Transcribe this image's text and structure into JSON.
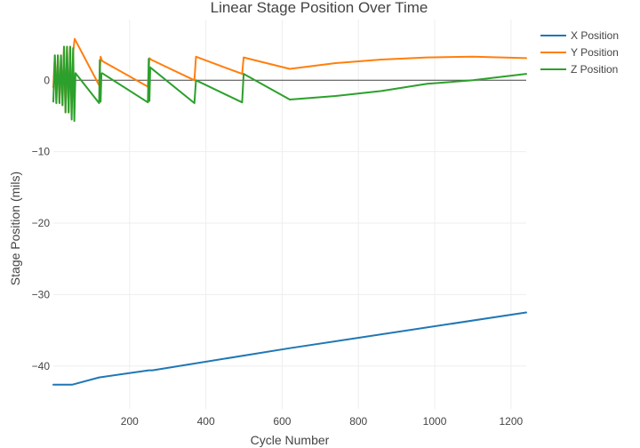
{
  "chart_data": {
    "type": "line",
    "title": "Linear Stage Position Over Time",
    "xlabel": "Cycle Number",
    "ylabel": "Stage Position (mils)",
    "xlim": [
      0,
      1240
    ],
    "ylim": [
      -46,
      8.5
    ],
    "xticks": [
      200,
      400,
      600,
      800,
      1000,
      1200
    ],
    "yticks": [
      -40,
      -30,
      -20,
      -10,
      0
    ],
    "grid": true,
    "legend_position": "top-right",
    "series": [
      {
        "name": "X Position",
        "color": "#1f77b4",
        "x": [
          0,
          50,
          120,
          250,
          260,
          620,
          1240
        ],
        "y": [
          -42.6,
          -42.6,
          -41.6,
          -40.6,
          -40.6,
          -37.5,
          -32.5
        ]
      },
      {
        "name": "Y Position",
        "color": "#ff7f0e",
        "x": [
          0,
          4,
          8,
          12,
          16,
          20,
          24,
          28,
          32,
          36,
          40,
          44,
          48,
          52,
          56,
          120,
          124,
          128,
          248,
          252,
          256,
          370,
          374,
          495,
          499,
          620,
          740,
          860,
          980,
          1100,
          1240
        ],
        "y": [
          -1,
          3.5,
          -3.2,
          3.5,
          -3.2,
          3.5,
          -3.5,
          4.7,
          -4.5,
          4.7,
          -4.5,
          4.7,
          -4,
          4,
          5.8,
          -0.7,
          3.3,
          2.7,
          -0.9,
          3.1,
          2.9,
          0.0,
          3.3,
          0.9,
          3.2,
          1.6,
          2.4,
          2.9,
          3.2,
          3.3,
          3.1
        ]
      },
      {
        "name": "Z Position",
        "color": "#2ca02c",
        "x": [
          0,
          4,
          8,
          12,
          16,
          20,
          24,
          28,
          32,
          36,
          40,
          44,
          48,
          52,
          55,
          58,
          120,
          122,
          124,
          126,
          128,
          248,
          250,
          252,
          254,
          370,
          374,
          495,
          499,
          620,
          740,
          860,
          980,
          1100,
          1240
        ],
        "y": [
          -3,
          3.5,
          -3.2,
          3.5,
          -3.2,
          3.5,
          -3.5,
          4.7,
          -4.5,
          4.7,
          -4.5,
          4.7,
          -5.5,
          4.5,
          -5.7,
          1.0,
          -3.2,
          2.8,
          -3.0,
          0.9,
          1.0,
          -3.1,
          3.0,
          -2.9,
          1.8,
          -3.2,
          0.0,
          -3.1,
          0.9,
          -2.7,
          -2.2,
          -1.5,
          -0.5,
          0.0,
          0.9
        ]
      }
    ]
  }
}
